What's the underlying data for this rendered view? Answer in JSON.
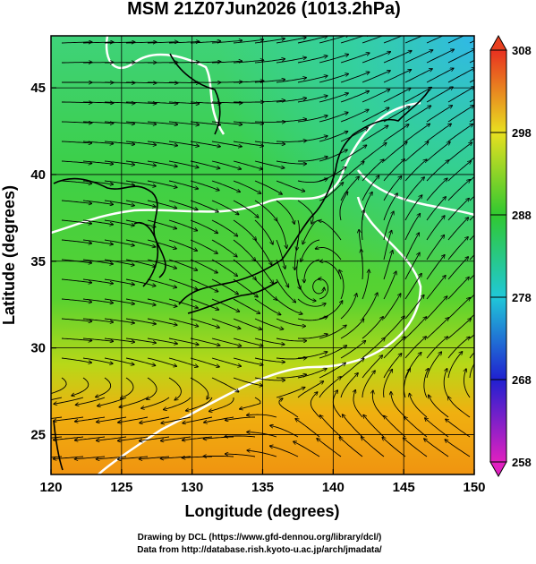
{
  "chart_data": {
    "type": "streamline-map",
    "title": "MSM 21Z07Jun2026 (1013.2hPa)",
    "xlabel": "Longitude (degrees)",
    "ylabel": "Latitude  (degrees)",
    "xlim": [
      120,
      150
    ],
    "xticks": [
      120,
      125,
      130,
      135,
      140,
      145,
      150
    ],
    "ylim": [
      22.7,
      48
    ],
    "yticks": [
      25,
      30,
      35,
      40,
      45
    ],
    "colorbar": {
      "lim": [
        258,
        308
      ],
      "ticks": [
        258,
        268,
        278,
        288,
        298,
        308
      ]
    },
    "credits": [
      "Drawing by DCL (https://www.gfd-dennou.org/library/dcl/)",
      "Data from http://database.rish.kyoto-u.ac.jp/arch/jmadata/"
    ]
  }
}
